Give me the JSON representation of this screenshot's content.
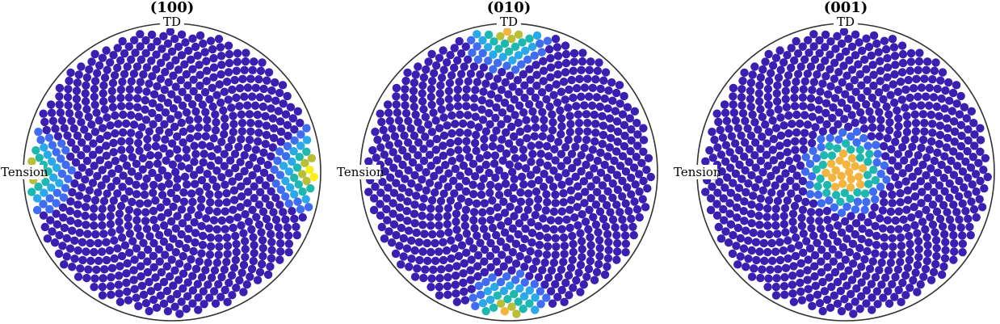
{
  "chart_data": {
    "type": "scatter",
    "description": "pole figure",
    "colors": {
      "base": "#3a1fb0",
      "blue": "#3f6cf0",
      "sky": "#2aa8e8",
      "teal": "#1fb8b0",
      "olive": "#b9bd38",
      "amber": "#f4b540",
      "yellow": "#f8f018",
      "border": "#333333"
    },
    "panels": [
      {
        "title": "(100)",
        "top_label": "TD",
        "left_label": "Tension",
        "hotspot": "left-right",
        "pole_direction": "Tension"
      },
      {
        "title": "(010)",
        "top_label": "TD",
        "left_label": "Tension",
        "hotspot": "top-bottom",
        "pole_direction": "TD"
      },
      {
        "title": "(001)",
        "top_label": "TD",
        "left_label": "Tension",
        "hotspot": "center",
        "pole_direction": "normal"
      }
    ]
  }
}
